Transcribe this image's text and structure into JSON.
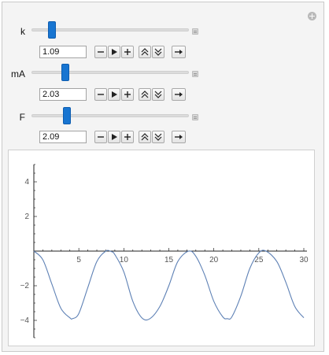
{
  "controls": [
    {
      "label": "k",
      "value": "1.09",
      "slider_fraction": 0.11
    },
    {
      "label": "mA",
      "value": "2.03",
      "slider_fraction": 0.2
    },
    {
      "label": "F",
      "value": "2.09",
      "slider_fraction": 0.21
    }
  ],
  "buttons": [
    "minus-icon",
    "play-icon",
    "plus-icon",
    "faster-icon",
    "slower-icon",
    "direction-icon"
  ],
  "colors": {
    "slider_thumb": "#1875d1",
    "curve": "#5e81b5",
    "axis": "#222222"
  },
  "chart_data": {
    "type": "line",
    "title": "",
    "xlabel": "",
    "ylabel": "",
    "xlim": [
      0,
      30
    ],
    "ylim": [
      -5,
      5
    ],
    "x_ticks": [
      5,
      10,
      15,
      20,
      25,
      30
    ],
    "y_ticks": [
      4,
      2,
      -2,
      -4
    ],
    "x_tick_labels": [
      "5",
      "10",
      "15",
      "20",
      "25",
      "30"
    ],
    "y_tick_labels": [
      "4",
      "2",
      "−2",
      "−4"
    ],
    "grid": false,
    "series": [
      {
        "x": [
          0,
          1,
          2,
          3,
          4,
          4.3,
          5,
          6,
          7,
          8,
          8.6,
          9,
          10,
          11,
          12,
          12.9,
          14,
          15,
          16,
          17.2,
          18,
          19,
          20,
          21,
          21.5,
          22,
          23,
          24,
          25,
          25.8,
          27,
          28,
          29,
          30
        ],
        "y": [
          0,
          -0.5,
          -1.9,
          -3.3,
          -3.85,
          -3.9,
          -3.6,
          -2.1,
          -0.6,
          0,
          -0.03,
          -0.2,
          -1.2,
          -2.9,
          -3.85,
          -3.9,
          -3.2,
          -2.0,
          -0.6,
          0,
          -0.3,
          -1.4,
          -2.9,
          -3.8,
          -3.9,
          -3.8,
          -2.6,
          -1.0,
          -0.1,
          0,
          -0.6,
          -1.8,
          -3.2,
          -3.85
        ]
      }
    ]
  }
}
